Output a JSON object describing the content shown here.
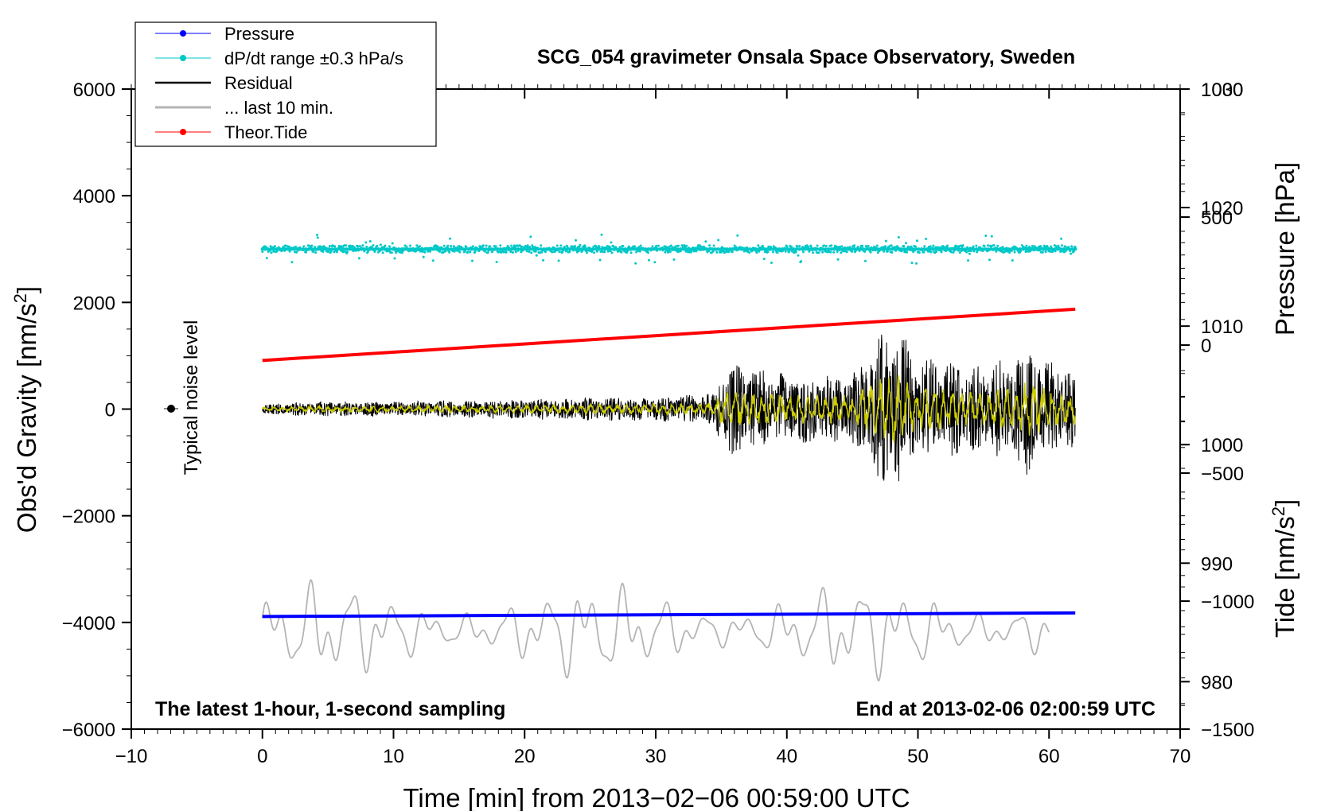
{
  "chart_data": {
    "type": "line",
    "title": "SCG_054 gravimeter Onsala Space Observatory, Sweden",
    "subtitle_left": "The latest 1-hour, 1-second sampling",
    "subtitle_right": "End at 2013-02-06 02:00:59 UTC",
    "xlabel": "Time [min] from 2013−02−06 00:59:00 UTC",
    "ylabel_left": "Obs'd Gravity [nm/s",
    "ylabel_right_top": "Pressure [hPa]",
    "ylabel_right_bottom": "Tide [nm/s",
    "superscript": "2",
    "noise_label": "Typical noise level",
    "xlim": [
      -10,
      70
    ],
    "ylim_gravity": [
      -6000,
      6000
    ],
    "ylim_pressure": [
      976,
      1030
    ],
    "ylim_tide": [
      -1500,
      1000
    ],
    "x_ticks": [
      "−10",
      "0",
      "10",
      "20",
      "30",
      "40",
      "50",
      "60",
      "70"
    ],
    "y_ticks_left": [
      "6000",
      "4000",
      "2000",
      "0",
      "−2000",
      "−4000",
      "−6000"
    ],
    "y_ticks_pressure": [
      "1030",
      "1020",
      "1010",
      "1000",
      "990",
      "980"
    ],
    "y_ticks_tide": [
      "1000",
      "500",
      "0",
      "−500",
      "−1000",
      "−1500"
    ],
    "legend": [
      {
        "label": "Pressure",
        "color": "#0000ff",
        "style": "line-dot"
      },
      {
        "label": "dP/dt range ±0.3 hPa/s",
        "color": "#00c8c8",
        "style": "line-dot"
      },
      {
        "label": "Residual",
        "color": "#000000",
        "style": "line"
      },
      {
        "label": "... last 10 min.",
        "color": "#b4b4b4",
        "style": "line"
      },
      {
        "label": "Theor.Tide",
        "color": "#ff0000",
        "style": "line-dot"
      }
    ],
    "series": [
      {
        "name": "Pressure",
        "axis": "pressure",
        "color": "#0000ff",
        "x": [
          0,
          62
        ],
        "values": [
          985.5,
          985.8
        ]
      },
      {
        "name": "Theor.Tide",
        "axis": "tide",
        "color": "#ff0000",
        "x": [
          0,
          62
        ],
        "values": [
          -60,
          140
        ]
      },
      {
        "name": "dP/dt range ±0.3 hPa/s",
        "axis": "gravity",
        "color": "#00c8c8",
        "x_range": [
          0,
          62
        ],
        "center": 3000,
        "spread": 70
      },
      {
        "name": "Residual",
        "axis": "gravity",
        "color": "#000000",
        "x_range": [
          0,
          62
        ],
        "envelope_x": [
          0,
          5,
          10,
          20,
          30,
          34.5,
          35,
          40,
          45,
          48,
          50,
          55,
          58,
          62
        ],
        "envelope_amp": [
          100,
          150,
          140,
          200,
          240,
          300,
          900,
          700,
          650,
          1700,
          1000,
          800,
          1300,
          700
        ]
      },
      {
        "name": "Residual (filtered)",
        "axis": "gravity",
        "color": "#cccc00",
        "x_range": [
          0,
          62
        ]
      },
      {
        "name": "... last 10 min.",
        "axis": "gravity_offset",
        "color": "#b4b4b4",
        "x_range": [
          0,
          60
        ],
        "center": -4150,
        "amplitude": 800
      }
    ],
    "noise_marker": {
      "x": -7,
      "y": 0
    }
  }
}
